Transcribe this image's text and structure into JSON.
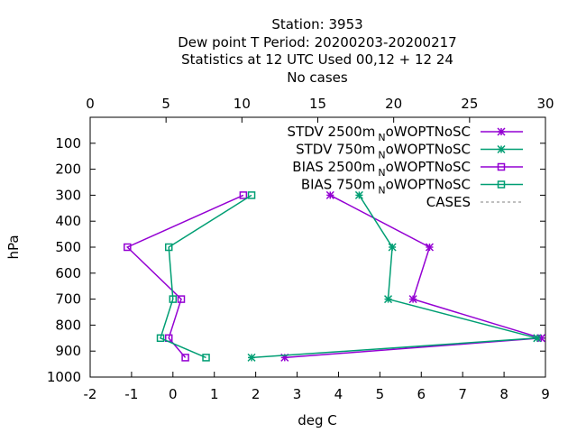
{
  "chart_data": {
    "type": "line",
    "title_lines": [
      "Station:     3953",
      "Dew point T  Period: 20200203-20200217",
      "Statistics at 12 UTC  Used  00,12  + 12 24",
      "No cases"
    ],
    "xlabel": "deg C",
    "ylabel": "hPa",
    "xlim": [
      -2,
      9
    ],
    "x2lim": [
      0,
      30
    ],
    "ylim": [
      1000,
      0
    ],
    "x_ticks": [
      "-2",
      "-1",
      "0",
      "1",
      "2",
      "3",
      "4",
      "5",
      "6",
      "7",
      "8",
      "9"
    ],
    "x2_ticks": [
      "0",
      "5",
      "10",
      "15",
      "20",
      "25",
      "30"
    ],
    "y_ticks": [
      "100",
      "200",
      "300",
      "400",
      "500",
      "600",
      "700",
      "800",
      "900",
      "1000"
    ],
    "legend_position": "top-right",
    "grid": false,
    "series": [
      {
        "name_main": "STDV 2500m",
        "name_sub": "N",
        "name_tail": "oWOPTNoSC",
        "color": "#9400d3",
        "marker": "x",
        "points": [
          [
            3.8,
            300
          ],
          [
            6.2,
            500
          ],
          [
            5.8,
            700
          ],
          [
            8.9,
            850
          ],
          [
            2.7,
            925
          ]
        ]
      },
      {
        "name_main": "STDV 750m",
        "name_sub": "N",
        "name_tail": "oWOPTNoSC",
        "color": "#009e73",
        "marker": "x",
        "points": [
          [
            4.5,
            300
          ],
          [
            5.3,
            500
          ],
          [
            5.2,
            700
          ],
          [
            8.8,
            850
          ],
          [
            1.9,
            925
          ]
        ]
      },
      {
        "name_main": "BIAS 2500m",
        "name_sub": "N",
        "name_tail": "oWOPTNoSC",
        "color": "#9400d3",
        "marker": "square",
        "points": [
          [
            1.7,
            300
          ],
          [
            -1.1,
            500
          ],
          [
            0.2,
            700
          ],
          [
            -0.1,
            850
          ],
          [
            0.3,
            925
          ]
        ]
      },
      {
        "name_main": "BIAS 750m",
        "name_sub": "N",
        "name_tail": "oWOPTNoSC",
        "color": "#009e73",
        "marker": "square",
        "points": [
          [
            1.9,
            300
          ],
          [
            -0.1,
            500
          ],
          [
            0.0,
            700
          ],
          [
            -0.3,
            850
          ],
          [
            0.8,
            925
          ]
        ]
      },
      {
        "name_main": "CASES",
        "name_sub": "",
        "name_tail": "",
        "color": "#808080",
        "marker": "dashed",
        "points": []
      }
    ]
  }
}
